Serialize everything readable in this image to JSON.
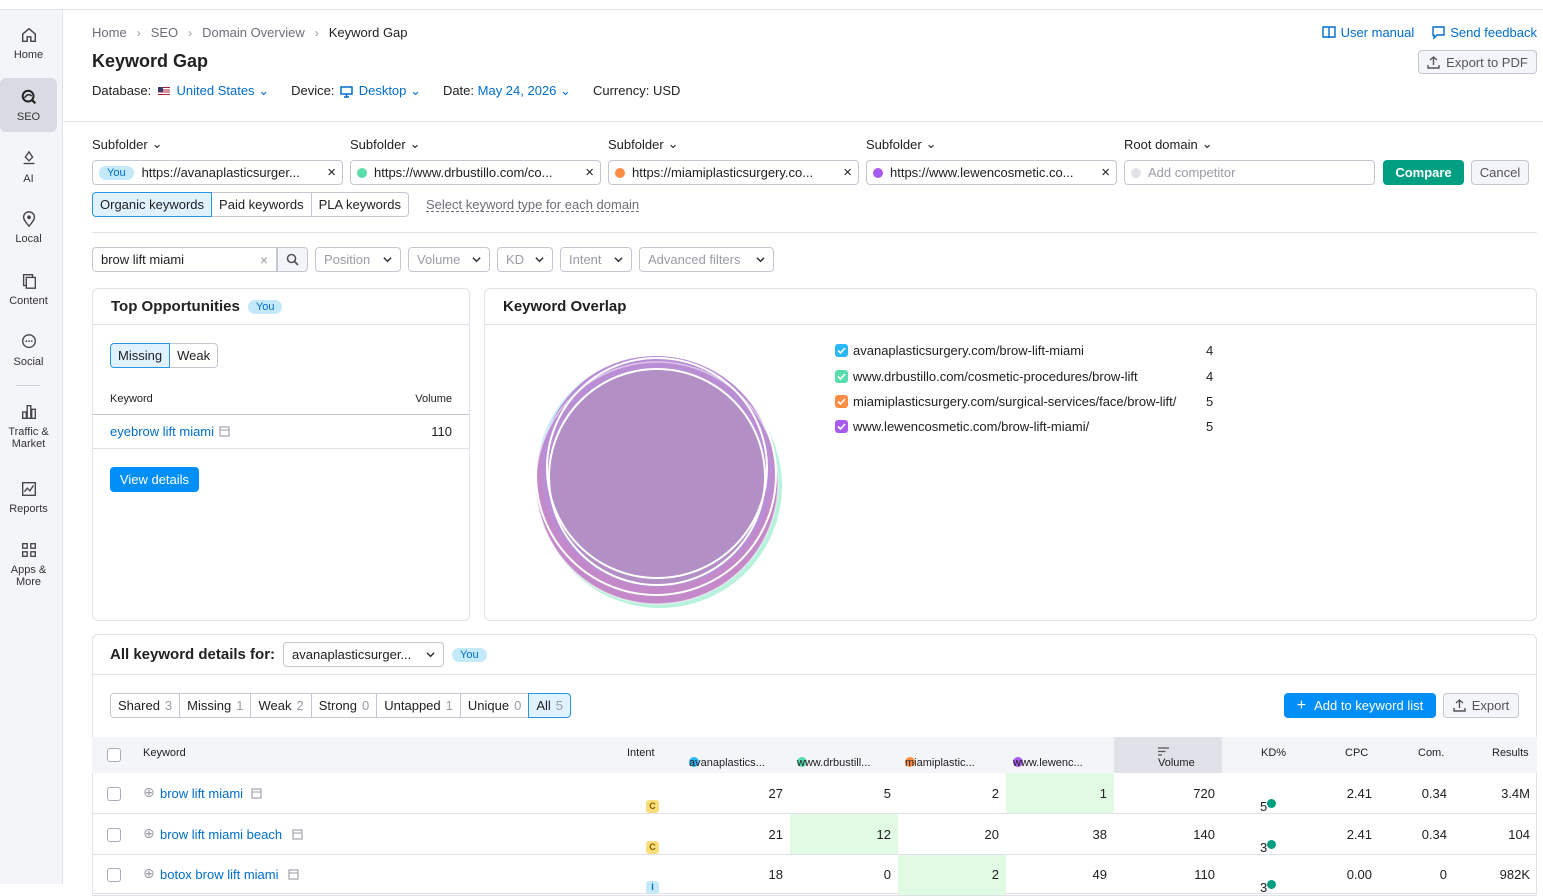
{
  "sidebar": [
    {
      "label": "Home",
      "icon": "home-icon"
    },
    {
      "label": "SEO",
      "icon": "seo-icon",
      "active": true
    },
    {
      "label": "AI",
      "icon": "ai-icon"
    },
    {
      "label": "Local",
      "icon": "location-pin-icon"
    },
    {
      "label": "Content",
      "icon": "content-icon"
    },
    {
      "label": "Social",
      "icon": "chat-bubble-icon"
    },
    {
      "label": "Traffic & Market",
      "icon": "bar-chart-icon"
    },
    {
      "label": "Reports",
      "icon": "report-chart-icon"
    },
    {
      "label": "Apps & More",
      "icon": "grid-apps-icon"
    }
  ],
  "breadcrumb": {
    "items": [
      "Home",
      "SEO",
      "Domain Overview"
    ],
    "current": "Keyword Gap"
  },
  "page_title": "Keyword Gap",
  "header_links": {
    "manual": "User manual",
    "feedback": "Send feedback",
    "export_pdf": "Export to PDF"
  },
  "meta": {
    "database_label": "Database:",
    "database_value": "United States",
    "device_label": "Device:",
    "device_value": "Desktop",
    "date_label": "Date:",
    "date_value": "May 24, 2026",
    "currency_label": "Currency:",
    "currency_value": "USD"
  },
  "domains": [
    {
      "type": "Subfolder",
      "value": "https://avanaplasticsurger...",
      "you": "You",
      "color": "#2bb7f6"
    },
    {
      "type": "Subfolder",
      "value": "https://www.drbustillo.com/co...",
      "color": "#59ddaa"
    },
    {
      "type": "Subfolder",
      "value": "https://miamiplasticsurgery.co...",
      "color": "#ff8c43"
    },
    {
      "type": "Subfolder",
      "value": "https://www.lewencosmetic.co...",
      "color": "#a75cf0"
    },
    {
      "type": "Root domain",
      "placeholder": "Add competitor"
    }
  ],
  "buttons": {
    "compare": "Compare",
    "cancel": "Cancel"
  },
  "keyword_types": [
    "Organic keywords",
    "Paid keywords",
    "PLA keywords"
  ],
  "keyword_type_link": "Select keyword type for each domain",
  "search": {
    "value": "brow lift miami"
  },
  "filters": [
    "Position",
    "Volume",
    "KD",
    "Intent",
    "Advanced filters"
  ],
  "top_opportunities": {
    "title": "Top Opportunities",
    "badge": "You",
    "tabs": [
      "Missing",
      "Weak"
    ],
    "col_keyword": "Keyword",
    "col_volume": "Volume",
    "rows": [
      {
        "keyword": "eyebrow lift miami",
        "volume": "110"
      }
    ],
    "view_details": "View details"
  },
  "overlap": {
    "title": "Keyword Overlap",
    "legend": [
      {
        "domain": "avanaplasticsurgery.com/brow-lift-miami",
        "count": "4",
        "color": "#2bb7f6"
      },
      {
        "domain": "www.drbustillo.com/cosmetic-procedures/brow-lift",
        "count": "4",
        "color": "#59ddaa"
      },
      {
        "domain": "miamiplasticsurgery.com/surgical-services/face/brow-lift/",
        "count": "5",
        "color": "#ff8c43"
      },
      {
        "domain": "www.lewencosmetic.com/brow-lift-miami/",
        "count": "5",
        "color": "#a75cf0"
      }
    ]
  },
  "details": {
    "title": "All keyword details for:",
    "select_value": "avanaplasticsurger...",
    "badge": "You",
    "tabs": [
      {
        "label": "Shared",
        "n": "3"
      },
      {
        "label": "Missing",
        "n": "1"
      },
      {
        "label": "Weak",
        "n": "2"
      },
      {
        "label": "Strong",
        "n": "0"
      },
      {
        "label": "Untapped",
        "n": "1"
      },
      {
        "label": "Unique",
        "n": "0"
      },
      {
        "label": "All",
        "n": "5"
      }
    ],
    "add_to_list": "Add to keyword list",
    "export": "Export"
  },
  "table": {
    "headers": {
      "keyword": "Keyword",
      "intent": "Intent",
      "d1": "avanaplastics...",
      "d2": "www.drbustill...",
      "d3": "miamiplastic...",
      "d4": "www.lewenc...",
      "volume": "Volume",
      "kd": "KD%",
      "cpc": "CPC",
      "com": "Com.",
      "results": "Results"
    },
    "rows": [
      {
        "keyword": "brow lift miami",
        "intent": "C",
        "d1": "27",
        "d2": "5",
        "d3": "2",
        "d4": "1",
        "volume": "720",
        "kd": "5",
        "cpc": "2.41",
        "com": "0.34",
        "results": "3.4M"
      },
      {
        "keyword": "brow lift miami beach",
        "intent": "C",
        "d1": "21",
        "d2": "12",
        "d3": "20",
        "d4": "38",
        "volume": "140",
        "kd": "3",
        "cpc": "2.41",
        "com": "0.34",
        "results": "104"
      },
      {
        "keyword": "botox brow lift miami",
        "intent": "I",
        "d1": "18",
        "d2": "0",
        "d3": "2",
        "d4": "49",
        "volume": "110",
        "kd": "3",
        "cpc": "0.00",
        "com": "0",
        "results": "982K"
      }
    ]
  }
}
